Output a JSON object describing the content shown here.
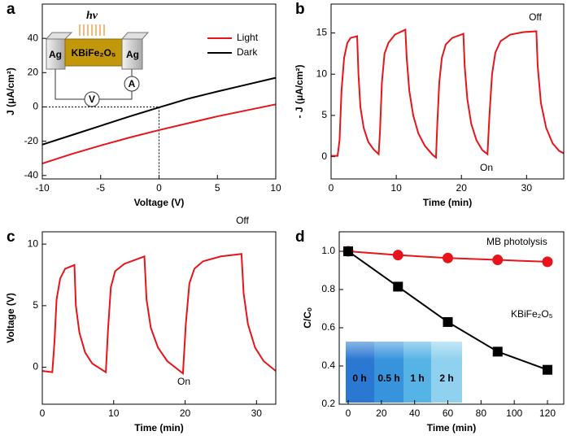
{
  "chart_data": [
    {
      "type": "line",
      "panel_label": "a",
      "xlabel": "Voltage (V)",
      "ylabel": "J (μA/cm²)",
      "xlim": [
        -10,
        10
      ],
      "ylim": [
        -42,
        60
      ],
      "xticks": [
        -10,
        -5,
        0,
        5,
        10
      ],
      "yticks": [
        -40,
        -20,
        0,
        20,
        40
      ],
      "guides": {
        "x": 0,
        "y": 0
      },
      "series": [
        {
          "name": "Light",
          "color": "#e8141b",
          "x": [
            -10,
            -7.5,
            -5,
            -2.5,
            0,
            2.5,
            5,
            7.5,
            10
          ],
          "values": [
            -33,
            -27.5,
            -22.5,
            -17.8,
            -13.5,
            -9.5,
            -5.5,
            -2,
            1.5
          ]
        },
        {
          "name": "Dark",
          "color": "#000000",
          "x": [
            -10,
            -7.5,
            -5,
            -2.5,
            0,
            2.5,
            5,
            7.5,
            10
          ],
          "values": [
            -22,
            -16.5,
            -11,
            -5.5,
            -0.3,
            4.8,
            9,
            13,
            17
          ]
        }
      ],
      "inset": {
        "top": "hν",
        "left": "Ag",
        "center": "KBiFe₂O₅",
        "right": "Ag",
        "voltmeter": "V",
        "ammeter": "A"
      }
    },
    {
      "type": "line",
      "panel_label": "b",
      "xlabel": "Time (min)",
      "ylabel": "- J (μA/cm²)",
      "xlim": [
        0,
        35.7
      ],
      "ylim": [
        -2.7,
        18.5
      ],
      "xticks": [
        0,
        10,
        20,
        30
      ],
      "yticks": [
        0,
        5,
        10,
        15
      ],
      "annotations": [
        "Off",
        "On"
      ],
      "series": [
        {
          "color": "#e8141b",
          "x": [
            0,
            1.0,
            1.3,
            1.6,
            2.0,
            2.5,
            3.0,
            4.0,
            4.2,
            4.5,
            5.0,
            5.7,
            6.5,
            7.3,
            7.5,
            7.8,
            8.2,
            8.8,
            9.8,
            11.4,
            11.6,
            12.0,
            12.6,
            13.4,
            14.4,
            15.6,
            16.1,
            16.3,
            16.6,
            17.0,
            17.6,
            18.6,
            20.3,
            20.5,
            20.9,
            21.5,
            22.3,
            23.2,
            24.0,
            24.3,
            24.7,
            25.2,
            26.0,
            27.5,
            29.5,
            31.5,
            31.7,
            32.2,
            33,
            34,
            35,
            35.7
          ],
          "values": [
            0.1,
            0.1,
            2,
            8,
            12,
            13.8,
            14.4,
            14.6,
            10,
            6,
            3.5,
            1.8,
            0.9,
            0.3,
            3,
            9,
            12.5,
            13.8,
            14.8,
            15.4,
            12,
            8,
            5,
            2.8,
            1.3,
            0.2,
            -0.1,
            4,
            9,
            12,
            13.6,
            14.4,
            14.9,
            11,
            7,
            4,
            2,
            0.8,
            0.3,
            5,
            10,
            12.6,
            14,
            14.8,
            15.1,
            15.2,
            11,
            6.5,
            3.5,
            1.6,
            0.7,
            0.4
          ]
        }
      ]
    },
    {
      "type": "line",
      "panel_label": "c",
      "xlabel": "Time (min)",
      "ylabel": "Voltage (V)",
      "xlim": [
        0,
        32.7
      ],
      "ylim": [
        -3,
        11
      ],
      "xticks": [
        0,
        10,
        20,
        30
      ],
      "yticks": [
        0,
        5,
        10
      ],
      "annotations": [
        "Off",
        "On"
      ],
      "series": [
        {
          "color": "#e8141b",
          "x": [
            0,
            1.4,
            1.7,
            2.0,
            2.5,
            3.2,
            4.5,
            4.7,
            5.2,
            6,
            7,
            8.9,
            9.2,
            9.6,
            10.2,
            11.5,
            14.3,
            14.6,
            15.2,
            16.2,
            17.5,
            19.7,
            20.1,
            20.6,
            21.3,
            22.5,
            25,
            27.9,
            28.2,
            28.8,
            29.8,
            31,
            32.7
          ],
          "values": [
            -0.3,
            -0.4,
            2,
            5.5,
            7.2,
            8.0,
            8.3,
            5,
            2.8,
            1.2,
            0.3,
            -0.4,
            3,
            6.5,
            7.8,
            8.4,
            9.0,
            5.5,
            3.2,
            1.6,
            0.5,
            -0.5,
            3.5,
            6.8,
            8.0,
            8.6,
            9.0,
            9.2,
            6,
            3.5,
            1.6,
            0.5,
            -0.3
          ]
        }
      ]
    },
    {
      "type": "line",
      "panel_label": "d",
      "xlabel": "Time (min)",
      "ylabel": "C/Cₒ",
      "xlim": [
        -5.4,
        129.8
      ],
      "ylim": [
        0.2,
        1.102
      ],
      "xticks": [
        0,
        20,
        40,
        60,
        80,
        100,
        120
      ],
      "yticks": [
        0.2,
        0.4,
        0.6,
        0.8,
        {
          "value": 1.0,
          "label": "1.0"
        }
      ],
      "series": [
        {
          "name": "MB photolysis",
          "color": "#e8141b",
          "marker": "circle",
          "x": [
            0,
            30,
            60,
            90,
            120
          ],
          "values": [
            1.0,
            0.98,
            0.965,
            0.955,
            0.945
          ]
        },
        {
          "name": "KBiFe₂O₅",
          "color": "#000000",
          "marker": "square",
          "x": [
            0,
            30,
            60,
            90,
            120
          ],
          "values": [
            1.0,
            0.815,
            0.63,
            0.475,
            0.38
          ]
        }
      ],
      "inset_labels": [
        "0 h",
        "0.5 h",
        "1 h",
        "2 h"
      ]
    }
  ]
}
